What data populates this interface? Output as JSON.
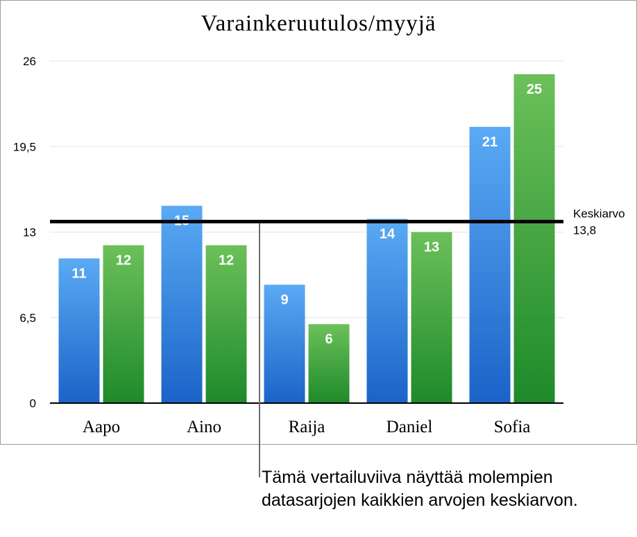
{
  "chart_data": {
    "type": "bar",
    "title": "Varainkeruutulos/myyjä",
    "categories": [
      "Aapo",
      "Aino",
      "Raija",
      "Daniel",
      "Sofia"
    ],
    "series": [
      {
        "values": [
          11,
          15,
          9,
          14,
          21
        ],
        "color": "#3a86d8"
      },
      {
        "values": [
          12,
          12,
          6,
          13,
          25
        ],
        "color": "#3fa23b"
      }
    ],
    "ylim": [
      0,
      26
    ],
    "yticks": [
      "0",
      "6,5",
      "13",
      "19,5",
      "26"
    ],
    "ytick_values": [
      0,
      6.5,
      13,
      19.5,
      26
    ],
    "grid": true,
    "reference_line": {
      "value": 13.8,
      "label": "Keskiarvo",
      "value_label": "13,8"
    }
  },
  "callout": {
    "text": "Tämä vertailuviiva näyttää molempien datasarjojen kaikkien arvojen keskiarvon."
  }
}
